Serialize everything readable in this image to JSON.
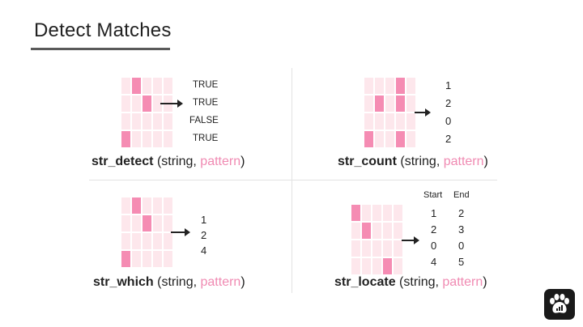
{
  "title": "Detect Matches",
  "panels": [
    {
      "id": "detect",
      "fn_name": "str_detect",
      "arg1": "string,",
      "arg2": "pattern",
      "open": "(",
      "close": ")",
      "grid": [
        [
          0,
          1,
          0,
          0,
          0
        ],
        [
          0,
          0,
          1,
          0,
          0
        ],
        [
          0,
          0,
          0,
          0,
          0
        ],
        [
          1,
          0,
          0,
          0,
          0
        ]
      ],
      "outputs": [
        "TRUE",
        "TRUE",
        "FALSE",
        "TRUE"
      ]
    },
    {
      "id": "count",
      "fn_name": "str_count",
      "arg1": "string,",
      "arg2": "pattern",
      "open": "(",
      "close": ")",
      "grid": [
        [
          0,
          0,
          0,
          1,
          0
        ],
        [
          0,
          1,
          0,
          1,
          0
        ],
        [
          0,
          0,
          0,
          0,
          0
        ],
        [
          1,
          0,
          0,
          1,
          0
        ]
      ],
      "outputs": [
        "1",
        "2",
        "0",
        "2"
      ]
    },
    {
      "id": "which",
      "fn_name": "str_which",
      "arg1": "string,",
      "arg2": "pattern",
      "open": "(",
      "close": ")",
      "grid": [
        [
          0,
          1,
          0,
          0,
          0
        ],
        [
          0,
          0,
          1,
          0,
          0
        ],
        [
          0,
          0,
          0,
          0,
          0
        ],
        [
          1,
          0,
          0,
          0,
          0
        ]
      ],
      "outputs": [
        "1",
        "2",
        "4"
      ]
    },
    {
      "id": "locate",
      "fn_name": "str_locate",
      "arg1": "string,",
      "arg2": "pattern",
      "open": "(",
      "close": ")",
      "grid": [
        [
          1,
          0,
          0,
          0,
          0
        ],
        [
          0,
          1,
          0,
          0,
          0
        ],
        [
          0,
          0,
          0,
          0,
          0
        ],
        [
          0,
          0,
          0,
          1,
          0
        ]
      ],
      "col_headers": [
        "Start",
        "End"
      ],
      "starts": [
        "1",
        "2",
        "0",
        "4"
      ],
      "ends": [
        "2",
        "3",
        "0",
        "5"
      ]
    }
  ],
  "logo_icon": "paw-chart-icon",
  "colors": {
    "highlight": "#f58cb3",
    "cell": "#fde7ec",
    "pattern_text": "#f08ab2"
  }
}
